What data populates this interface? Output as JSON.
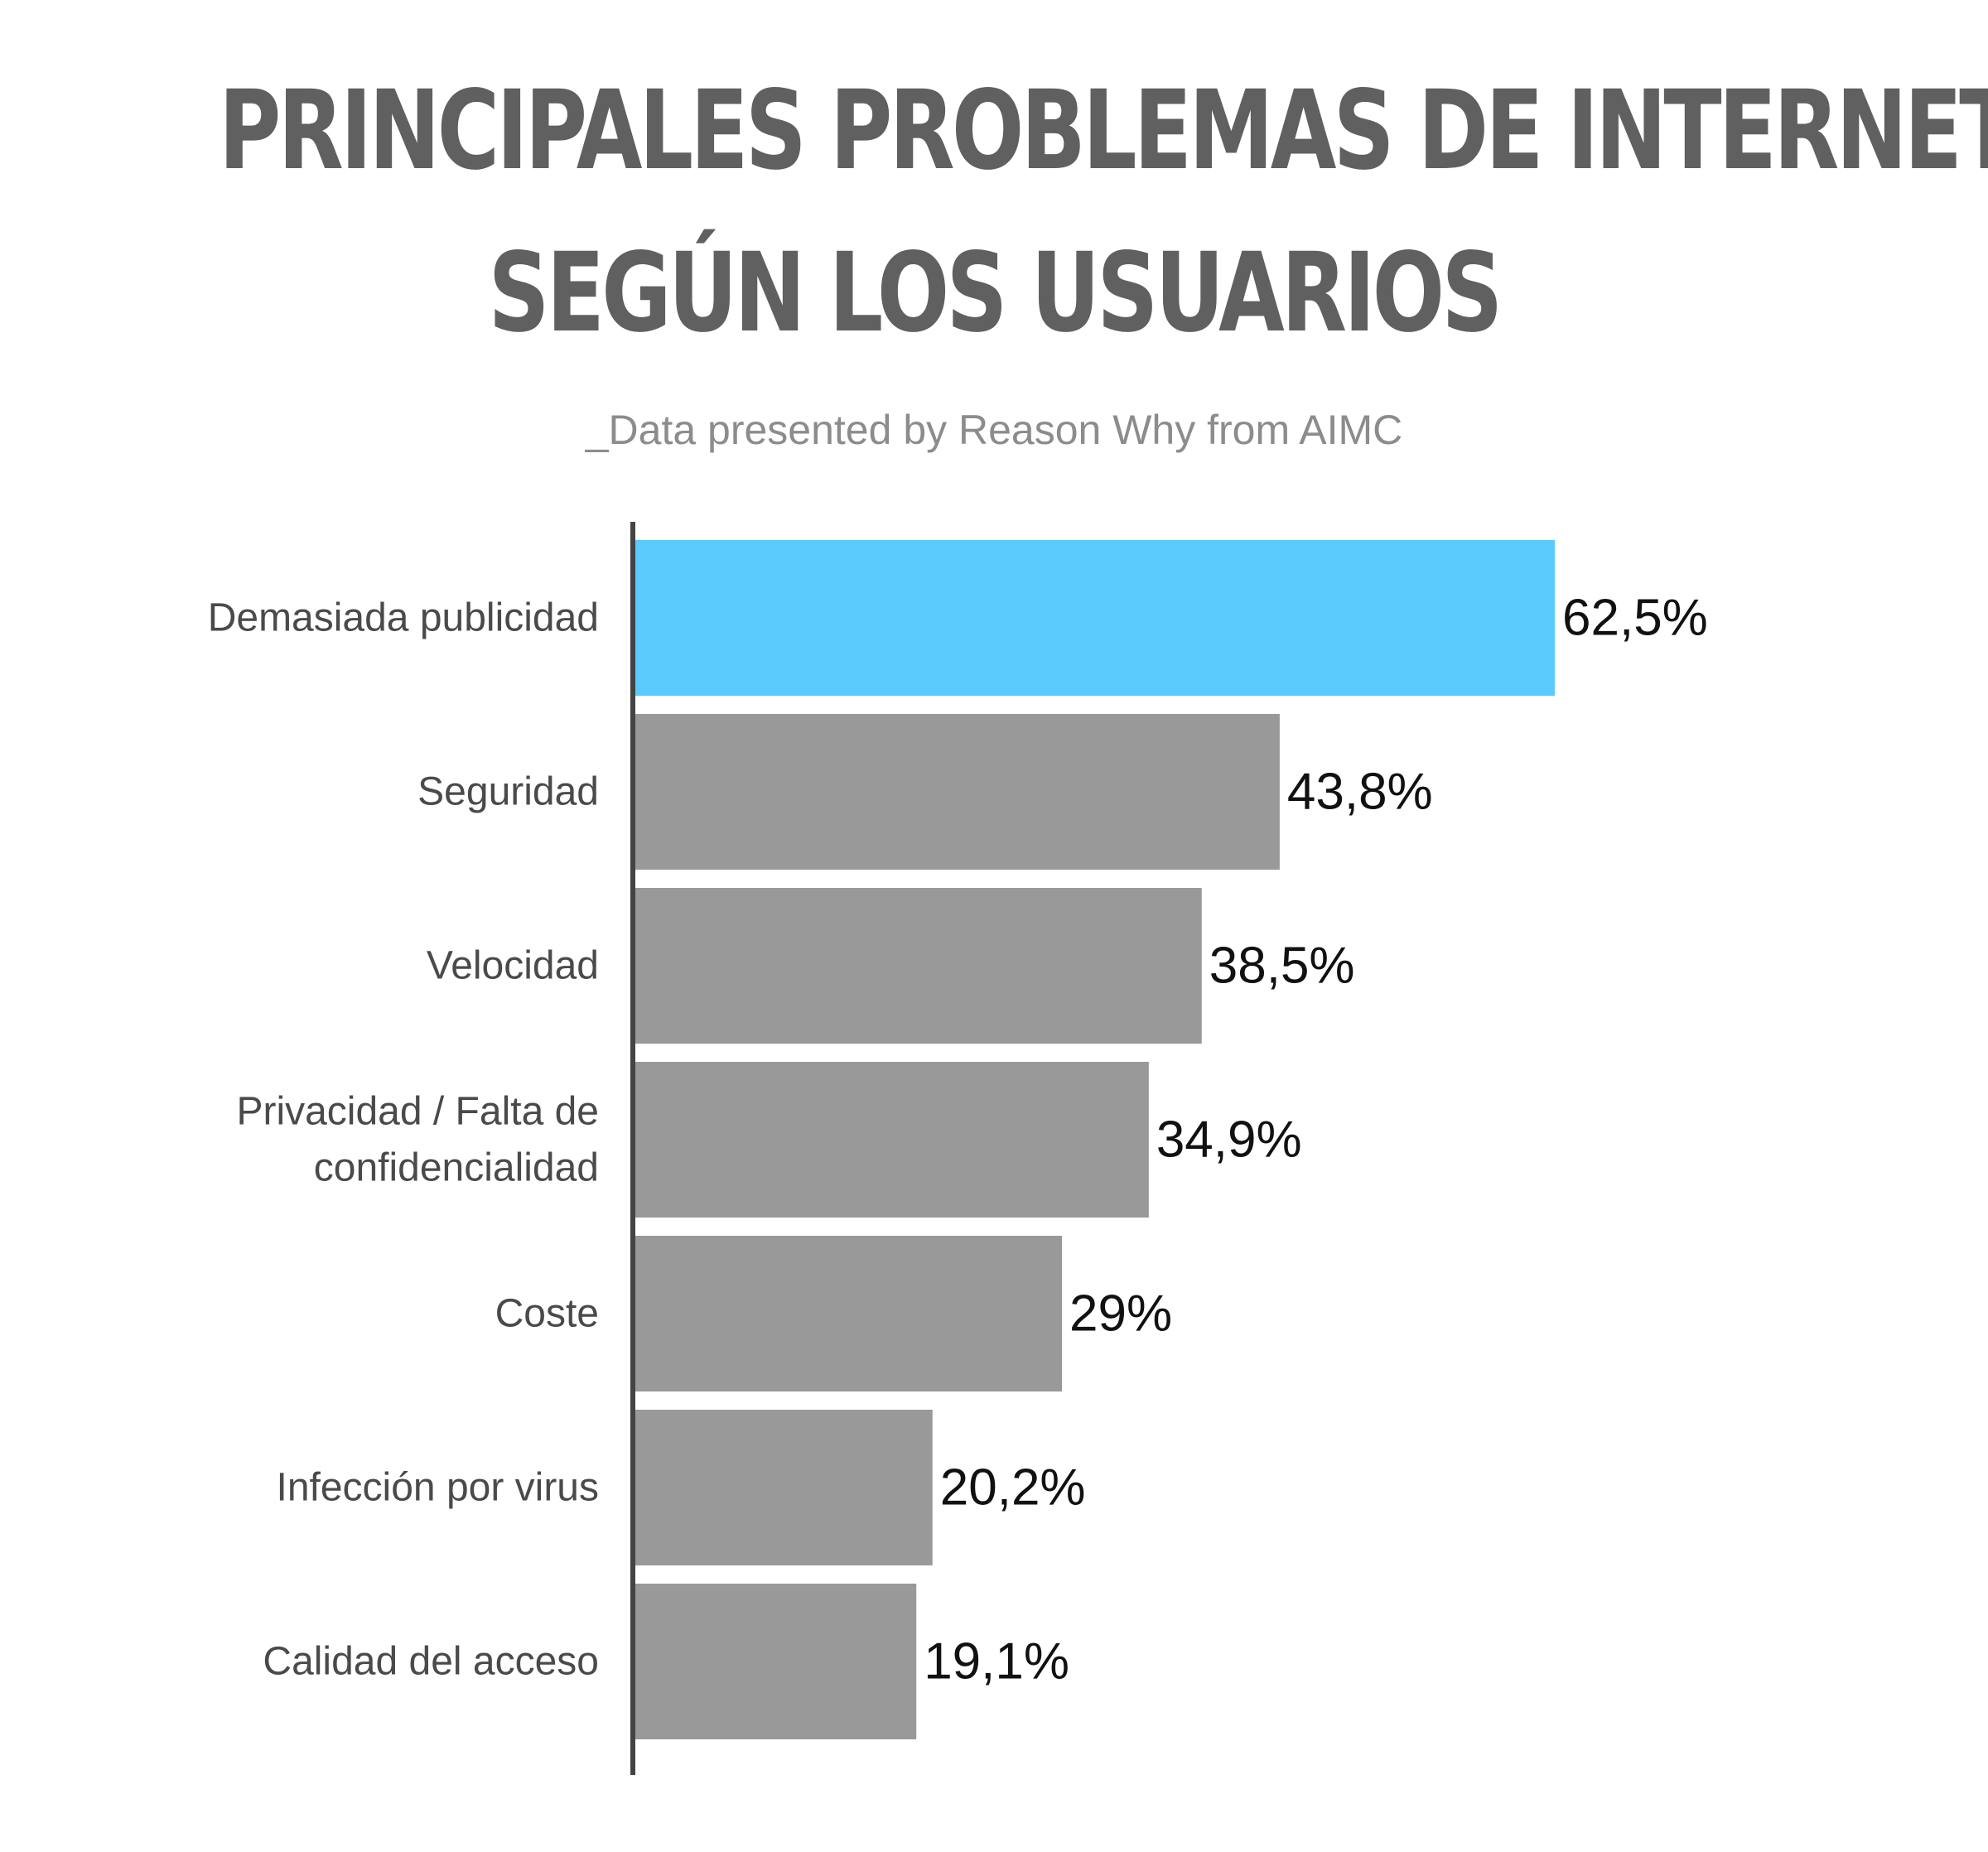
{
  "title_lines": [
    "PRINCIPALES PROBLEMAS DE INTERNET",
    "SEGÚN LOS USUARIOS"
  ],
  "subtitle": "_Data presented by Reason Why from AIMC",
  "colors": {
    "highlight": "#5BCBFD",
    "bar": "#999999",
    "axis": "#444444",
    "category_text": "#4a4a4a",
    "value_text": "#111111"
  },
  "chart_data": {
    "type": "bar",
    "orientation": "horizontal",
    "title": "PRINCIPALES PROBLEMAS DE INTERNET SEGÚN LOS USUARIOS",
    "subtitle": "_Data presented by Reason Why from AIMC",
    "categories": [
      [
        "Demasiada publicidad"
      ],
      [
        "Seguridad"
      ],
      [
        "Velocidad"
      ],
      [
        "Privacidad / Falta de",
        "confidencialidad"
      ],
      [
        "Coste"
      ],
      [
        "Infección por virus"
      ],
      [
        "Calidad del acceso"
      ]
    ],
    "values": [
      62.5,
      43.8,
      38.5,
      34.9,
      29,
      20.2,
      19.1
    ],
    "value_labels": [
      "62,5%",
      "43,8%",
      "38,5%",
      "34,9%",
      "29%",
      "20,2%",
      "19,1%"
    ],
    "highlight_index": 0,
    "xlim": [
      0,
      62.5
    ],
    "grid": false,
    "legend": "none"
  }
}
